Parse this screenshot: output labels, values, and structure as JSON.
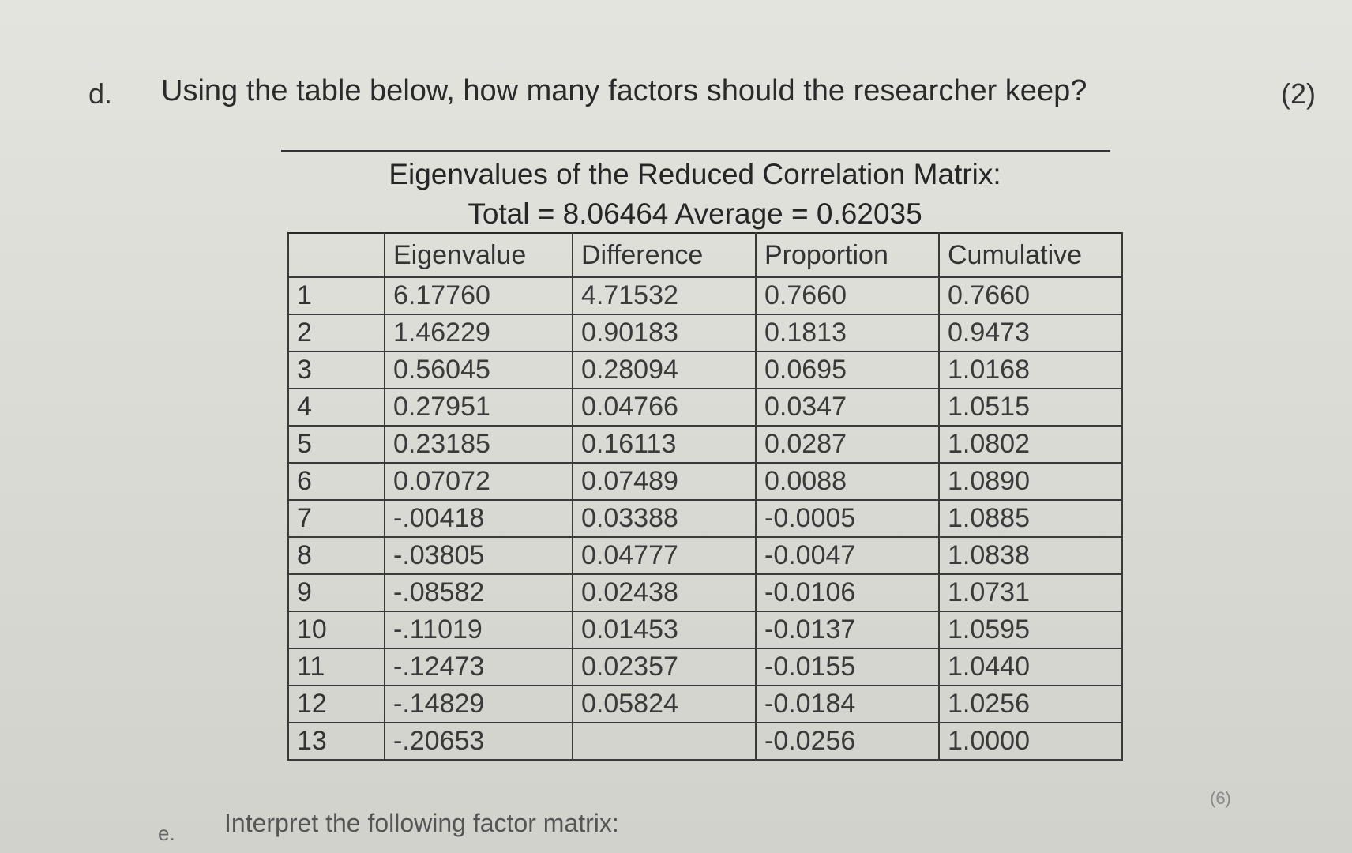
{
  "question_d": {
    "letter": "d.",
    "text": "Using the table below, how many factors should the researcher keep?",
    "marks": "(2)"
  },
  "table": {
    "title": "Eigenvalues of the Reduced Correlation Matrix:",
    "subtitle": "Total = 8.06464 Average = 0.62035",
    "headers": [
      "",
      "Eigenvalue",
      "Difference",
      "Proportion",
      "Cumulative"
    ],
    "rows": [
      [
        "1",
        "6.17760",
        "4.71532",
        "0.7660",
        "0.7660"
      ],
      [
        "2",
        "1.46229",
        "0.90183",
        "0.1813",
        "0.9473"
      ],
      [
        "3",
        "0.56045",
        "0.28094",
        "0.0695",
        "1.0168"
      ],
      [
        "4",
        "0.27951",
        "0.04766",
        "0.0347",
        "1.0515"
      ],
      [
        "5",
        "0.23185",
        "0.16113",
        "0.0287",
        "1.0802"
      ],
      [
        "6",
        "0.07072",
        "0.07489",
        "0.0088",
        "1.0890"
      ],
      [
        "7",
        "-.00418",
        "0.03388",
        "-0.0005",
        "1.0885"
      ],
      [
        "8",
        "-.03805",
        "0.04777",
        "-0.0047",
        "1.0838"
      ],
      [
        "9",
        "-.08582",
        "0.02438",
        "-0.0106",
        "1.0731"
      ],
      [
        "10",
        "-.11019",
        "0.01453",
        "-0.0137",
        "1.0595"
      ],
      [
        "11",
        "-.12473",
        "0.02357",
        "-0.0155",
        "1.0440"
      ],
      [
        "12",
        "-.14829",
        "0.05824",
        "-0.0184",
        "1.0256"
      ],
      [
        "13",
        "-.20653",
        "",
        "-0.0256",
        "1.0000"
      ]
    ]
  },
  "question_e": {
    "letter": "e.",
    "text": "Interpret the following factor matrix:",
    "marks": "(6)"
  }
}
